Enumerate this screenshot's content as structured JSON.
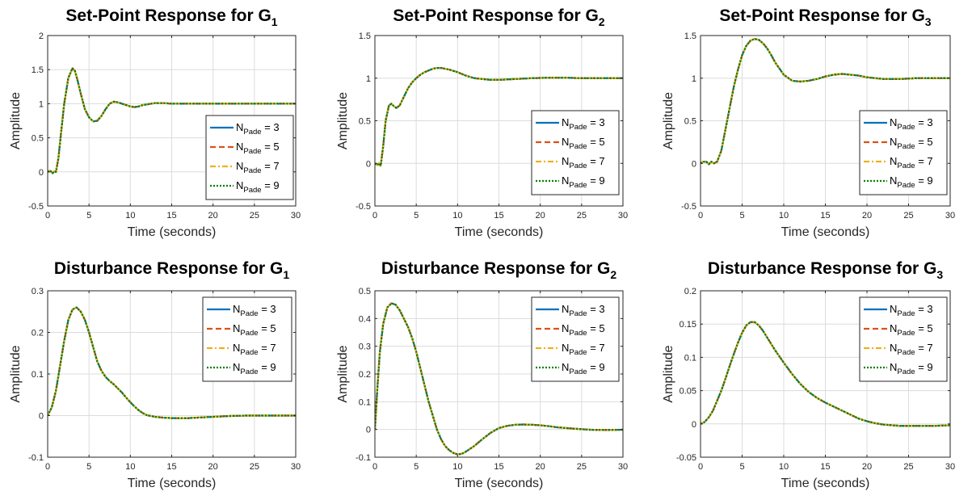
{
  "figure": {
    "background": "#ffffff"
  },
  "chart_data": [
    {
      "type": "line",
      "title": {
        "main": "Set-Point Response for G",
        "sub": "1"
      },
      "xlabel": "Time (seconds)",
      "ylabel": "Amplitude",
      "xlim": [
        0,
        30
      ],
      "ylim": [
        -0.5,
        2
      ],
      "xticks": [
        "0",
        "5",
        "10",
        "15",
        "20",
        "25",
        "30"
      ],
      "yticks": [
        "-0.5",
        "0",
        "0.5",
        "1",
        "1.5",
        "2"
      ],
      "grid": true,
      "legend_position": "right",
      "legend": [
        {
          "main": "N",
          "sub": "Pade",
          "rest": " = 3"
        },
        {
          "main": "N",
          "sub": "Pade",
          "rest": " = 5"
        },
        {
          "main": "N",
          "sub": "Pade",
          "rest": " = 7"
        },
        {
          "main": "N",
          "sub": "Pade",
          "rest": " = 9"
        }
      ],
      "series_styles": [
        {
          "color": "#0072BD",
          "dash": ""
        },
        {
          "color": "#D95319",
          "dash": "7,4"
        },
        {
          "color": "#EDB120",
          "dash": "7,3,2,3"
        },
        {
          "color": "#008000",
          "dash": "2,2"
        }
      ],
      "x": [
        0,
        0.3,
        0.6,
        0.8,
        1,
        1.3,
        1.6,
        2,
        2.5,
        3,
        3.3,
        3.6,
        4,
        4.5,
        5,
        5.5,
        6,
        6.5,
        7,
        7.5,
        8,
        8.5,
        9,
        9.5,
        10,
        10.5,
        11,
        11.5,
        12,
        13,
        14,
        15,
        16,
        18,
        20,
        25,
        30
      ],
      "y": [
        0,
        0.02,
        -0.02,
        0.01,
        0,
        0.2,
        0.55,
        1,
        1.38,
        1.52,
        1.48,
        1.35,
        1.15,
        0.92,
        0.8,
        0.74,
        0.75,
        0.82,
        0.92,
        1.0,
        1.03,
        1.02,
        1.0,
        0.98,
        0.96,
        0.95,
        0.96,
        0.98,
        0.99,
        1.01,
        1.01,
        1.0,
        1.0,
        1.0,
        1.0,
        1.0,
        1.0
      ]
    },
    {
      "type": "line",
      "title": {
        "main": "Set-Point Response for G",
        "sub": "2"
      },
      "xlabel": "Time (seconds)",
      "ylabel": "Amplitude",
      "xlim": [
        0,
        30
      ],
      "ylim": [
        -0.5,
        1.5
      ],
      "xticks": [
        "0",
        "5",
        "10",
        "15",
        "20",
        "25",
        "30"
      ],
      "yticks": [
        "-0.5",
        "0",
        "0.5",
        "1",
        "1.5"
      ],
      "grid": true,
      "legend_position": "right",
      "legend": [
        {
          "main": "N",
          "sub": "Pade",
          "rest": " = 3"
        },
        {
          "main": "N",
          "sub": "Pade",
          "rest": " = 5"
        },
        {
          "main": "N",
          "sub": "Pade",
          "rest": " = 7"
        },
        {
          "main": "N",
          "sub": "Pade",
          "rest": " = 9"
        }
      ],
      "series_styles": [
        {
          "color": "#0072BD",
          "dash": ""
        },
        {
          "color": "#D95319",
          "dash": "7,4"
        },
        {
          "color": "#EDB120",
          "dash": "7,3,2,3"
        },
        {
          "color": "#008000",
          "dash": "2,2"
        }
      ],
      "x": [
        0,
        0.3,
        0.5,
        0.7,
        1,
        1.3,
        1.7,
        2,
        2.3,
        2.6,
        3,
        3.5,
        4,
        4.5,
        5,
        5.5,
        6,
        6.5,
        7,
        7.5,
        8,
        9,
        10,
        11,
        12,
        13,
        14,
        15,
        17,
        19,
        21,
        23,
        25,
        27,
        30
      ],
      "y": [
        0,
        -0.02,
        0.0,
        -0.03,
        0.2,
        0.5,
        0.68,
        0.7,
        0.67,
        0.65,
        0.68,
        0.78,
        0.88,
        0.95,
        1.0,
        1.04,
        1.07,
        1.09,
        1.11,
        1.12,
        1.12,
        1.1,
        1.07,
        1.03,
        1.0,
        0.99,
        0.98,
        0.98,
        0.99,
        1.0,
        1.005,
        1.005,
        1.0,
        1.0,
        1.0
      ]
    },
    {
      "type": "line",
      "title": {
        "main": "Set-Point Response for G",
        "sub": "3"
      },
      "xlabel": "Time (seconds)",
      "ylabel": "Amplitude",
      "xlim": [
        0,
        30
      ],
      "ylim": [
        -0.5,
        1.5
      ],
      "xticks": [
        "0",
        "5",
        "10",
        "15",
        "20",
        "25",
        "30"
      ],
      "yticks": [
        "-0.5",
        "0",
        "0.5",
        "1",
        "1.5"
      ],
      "grid": true,
      "legend_position": "right",
      "legend": [
        {
          "main": "N",
          "sub": "Pade",
          "rest": " = 3"
        },
        {
          "main": "N",
          "sub": "Pade",
          "rest": " = 5"
        },
        {
          "main": "N",
          "sub": "Pade",
          "rest": " = 7"
        },
        {
          "main": "N",
          "sub": "Pade",
          "rest": " = 9"
        }
      ],
      "series_styles": [
        {
          "color": "#0072BD",
          "dash": ""
        },
        {
          "color": "#D95319",
          "dash": "7,4"
        },
        {
          "color": "#EDB120",
          "dash": "7,3,2,3"
        },
        {
          "color": "#008000",
          "dash": "2,2"
        }
      ],
      "x": [
        0,
        0.3,
        0.7,
        1,
        1.3,
        1.6,
        2,
        2.5,
        3,
        3.5,
        4,
        4.5,
        5,
        5.5,
        6,
        6.5,
        7,
        7.5,
        8,
        8.5,
        9,
        10,
        11,
        12,
        13,
        14,
        15,
        16,
        17,
        18,
        19,
        20,
        21,
        22,
        24,
        26,
        28,
        30
      ],
      "y": [
        0,
        0.02,
        0.02,
        -0.01,
        0.02,
        0.0,
        0.02,
        0.15,
        0.4,
        0.65,
        0.9,
        1.1,
        1.27,
        1.38,
        1.44,
        1.46,
        1.45,
        1.41,
        1.35,
        1.27,
        1.18,
        1.04,
        0.97,
        0.96,
        0.97,
        0.99,
        1.02,
        1.04,
        1.05,
        1.04,
        1.03,
        1.01,
        1.0,
        0.99,
        0.99,
        1.0,
        1.0,
        1.0
      ]
    },
    {
      "type": "line",
      "title": {
        "main": "Disturbance Response for G",
        "sub": "1"
      },
      "xlabel": "Time (seconds)",
      "ylabel": "Amplitude",
      "xlim": [
        0,
        30
      ],
      "ylim": [
        -0.1,
        0.3
      ],
      "xticks": [
        "0",
        "5",
        "10",
        "15",
        "20",
        "25",
        "30"
      ],
      "yticks": [
        "-0.1",
        "0",
        "0.1",
        "0.2",
        "0.3"
      ],
      "grid": true,
      "legend_position": "top-right",
      "legend": [
        {
          "main": "N",
          "sub": "Pade",
          "rest": " = 3"
        },
        {
          "main": "N",
          "sub": "Pade",
          "rest": " = 5"
        },
        {
          "main": "N",
          "sub": "Pade",
          "rest": " = 7"
        },
        {
          "main": "N",
          "sub": "Pade",
          "rest": " = 9"
        }
      ],
      "series_styles": [
        {
          "color": "#0072BD",
          "dash": ""
        },
        {
          "color": "#D95319",
          "dash": "7,4"
        },
        {
          "color": "#EDB120",
          "dash": "7,3,2,3"
        },
        {
          "color": "#008000",
          "dash": "2,2"
        }
      ],
      "x": [
        0,
        0.5,
        1,
        1.5,
        2,
        2.5,
        3,
        3.5,
        4,
        4.5,
        5,
        5.5,
        6,
        6.5,
        7,
        7.5,
        8,
        8.5,
        9,
        9.5,
        10,
        10.5,
        11,
        11.5,
        12,
        13,
        14,
        15,
        16,
        17,
        18,
        19,
        20,
        22,
        24,
        26,
        28,
        30
      ],
      "y": [
        0,
        0.02,
        0.06,
        0.12,
        0.18,
        0.23,
        0.255,
        0.26,
        0.25,
        0.23,
        0.2,
        0.165,
        0.13,
        0.108,
        0.093,
        0.083,
        0.075,
        0.065,
        0.055,
        0.043,
        0.032,
        0.022,
        0.013,
        0.006,
        0.001,
        -0.003,
        -0.005,
        -0.006,
        -0.006,
        -0.006,
        -0.005,
        -0.004,
        -0.003,
        -0.001,
        0.0,
        0.0,
        0.0,
        0.0
      ]
    },
    {
      "type": "line",
      "title": {
        "main": "Disturbance Response for G",
        "sub": "2"
      },
      "xlabel": "Time (seconds)",
      "ylabel": "Amplitude",
      "xlim": [
        0,
        30
      ],
      "ylim": [
        -0.1,
        0.5
      ],
      "xticks": [
        "0",
        "5",
        "10",
        "15",
        "20",
        "25",
        "30"
      ],
      "yticks": [
        "-0.1",
        "0",
        "0.1",
        "0.2",
        "0.3",
        "0.4",
        "0.5"
      ],
      "grid": true,
      "legend_position": "top-right",
      "legend": [
        {
          "main": "N",
          "sub": "Pade",
          "rest": " = 3"
        },
        {
          "main": "N",
          "sub": "Pade",
          "rest": " = 5"
        },
        {
          "main": "N",
          "sub": "Pade",
          "rest": " = 7"
        },
        {
          "main": "N",
          "sub": "Pade",
          "rest": " = 9"
        }
      ],
      "series_styles": [
        {
          "color": "#0072BD",
          "dash": ""
        },
        {
          "color": "#D95319",
          "dash": "7,4"
        },
        {
          "color": "#EDB120",
          "dash": "7,3,2,3"
        },
        {
          "color": "#008000",
          "dash": "2,2"
        }
      ],
      "x": [
        0,
        0.3,
        0.6,
        1,
        1.5,
        2,
        2.5,
        3,
        3.5,
        4,
        4.5,
        5,
        5.5,
        6,
        6.5,
        7,
        7.5,
        8,
        8.5,
        9,
        9.5,
        10,
        10.5,
        11,
        12,
        13,
        14,
        15,
        16,
        17,
        18,
        19,
        20,
        21,
        22,
        24,
        26,
        28,
        30
      ],
      "y": [
        0,
        0.15,
        0.28,
        0.38,
        0.44,
        0.455,
        0.45,
        0.43,
        0.4,
        0.37,
        0.33,
        0.28,
        0.22,
        0.16,
        0.1,
        0.05,
        0.0,
        -0.035,
        -0.06,
        -0.075,
        -0.085,
        -0.09,
        -0.088,
        -0.08,
        -0.06,
        -0.035,
        -0.012,
        0.005,
        0.013,
        0.017,
        0.018,
        0.017,
        0.015,
        0.012,
        0.008,
        0.003,
        -0.001,
        -0.002,
        -0.001
      ]
    },
    {
      "type": "line",
      "title": {
        "main": "Disturbance Response for G",
        "sub": "3"
      },
      "xlabel": "Time (seconds)",
      "ylabel": "Amplitude",
      "xlim": [
        0,
        30
      ],
      "ylim": [
        -0.05,
        0.2
      ],
      "xticks": [
        "0",
        "5",
        "10",
        "15",
        "20",
        "25",
        "30"
      ],
      "yticks": [
        "-0.05",
        "0",
        "0.05",
        "0.1",
        "0.15",
        "0.2"
      ],
      "grid": true,
      "legend_position": "top-right",
      "legend": [
        {
          "main": "N",
          "sub": "Pade",
          "rest": " = 3"
        },
        {
          "main": "N",
          "sub": "Pade",
          "rest": " = 5"
        },
        {
          "main": "N",
          "sub": "Pade",
          "rest": " = 7"
        },
        {
          "main": "N",
          "sub": "Pade",
          "rest": " = 9"
        }
      ],
      "series_styles": [
        {
          "color": "#0072BD",
          "dash": ""
        },
        {
          "color": "#D95319",
          "dash": "7,4"
        },
        {
          "color": "#EDB120",
          "dash": "7,3,2,3"
        },
        {
          "color": "#008000",
          "dash": "2,2"
        }
      ],
      "x": [
        0,
        0.5,
        1,
        1.5,
        2,
        2.5,
        3,
        3.5,
        4,
        4.5,
        5,
        5.5,
        6,
        6.5,
        7,
        7.5,
        8,
        9,
        10,
        11,
        12,
        13,
        14,
        15,
        16,
        17,
        18,
        19,
        20,
        21,
        22,
        23,
        24,
        25,
        26,
        28,
        30
      ],
      "y": [
        0,
        0.003,
        0.01,
        0.02,
        0.035,
        0.05,
        0.068,
        0.087,
        0.105,
        0.122,
        0.137,
        0.148,
        0.153,
        0.153,
        0.148,
        0.14,
        0.13,
        0.11,
        0.092,
        0.075,
        0.06,
        0.048,
        0.039,
        0.032,
        0.026,
        0.02,
        0.014,
        0.008,
        0.004,
        0.001,
        -0.001,
        -0.002,
        -0.003,
        -0.003,
        -0.003,
        -0.003,
        -0.002
      ]
    }
  ]
}
